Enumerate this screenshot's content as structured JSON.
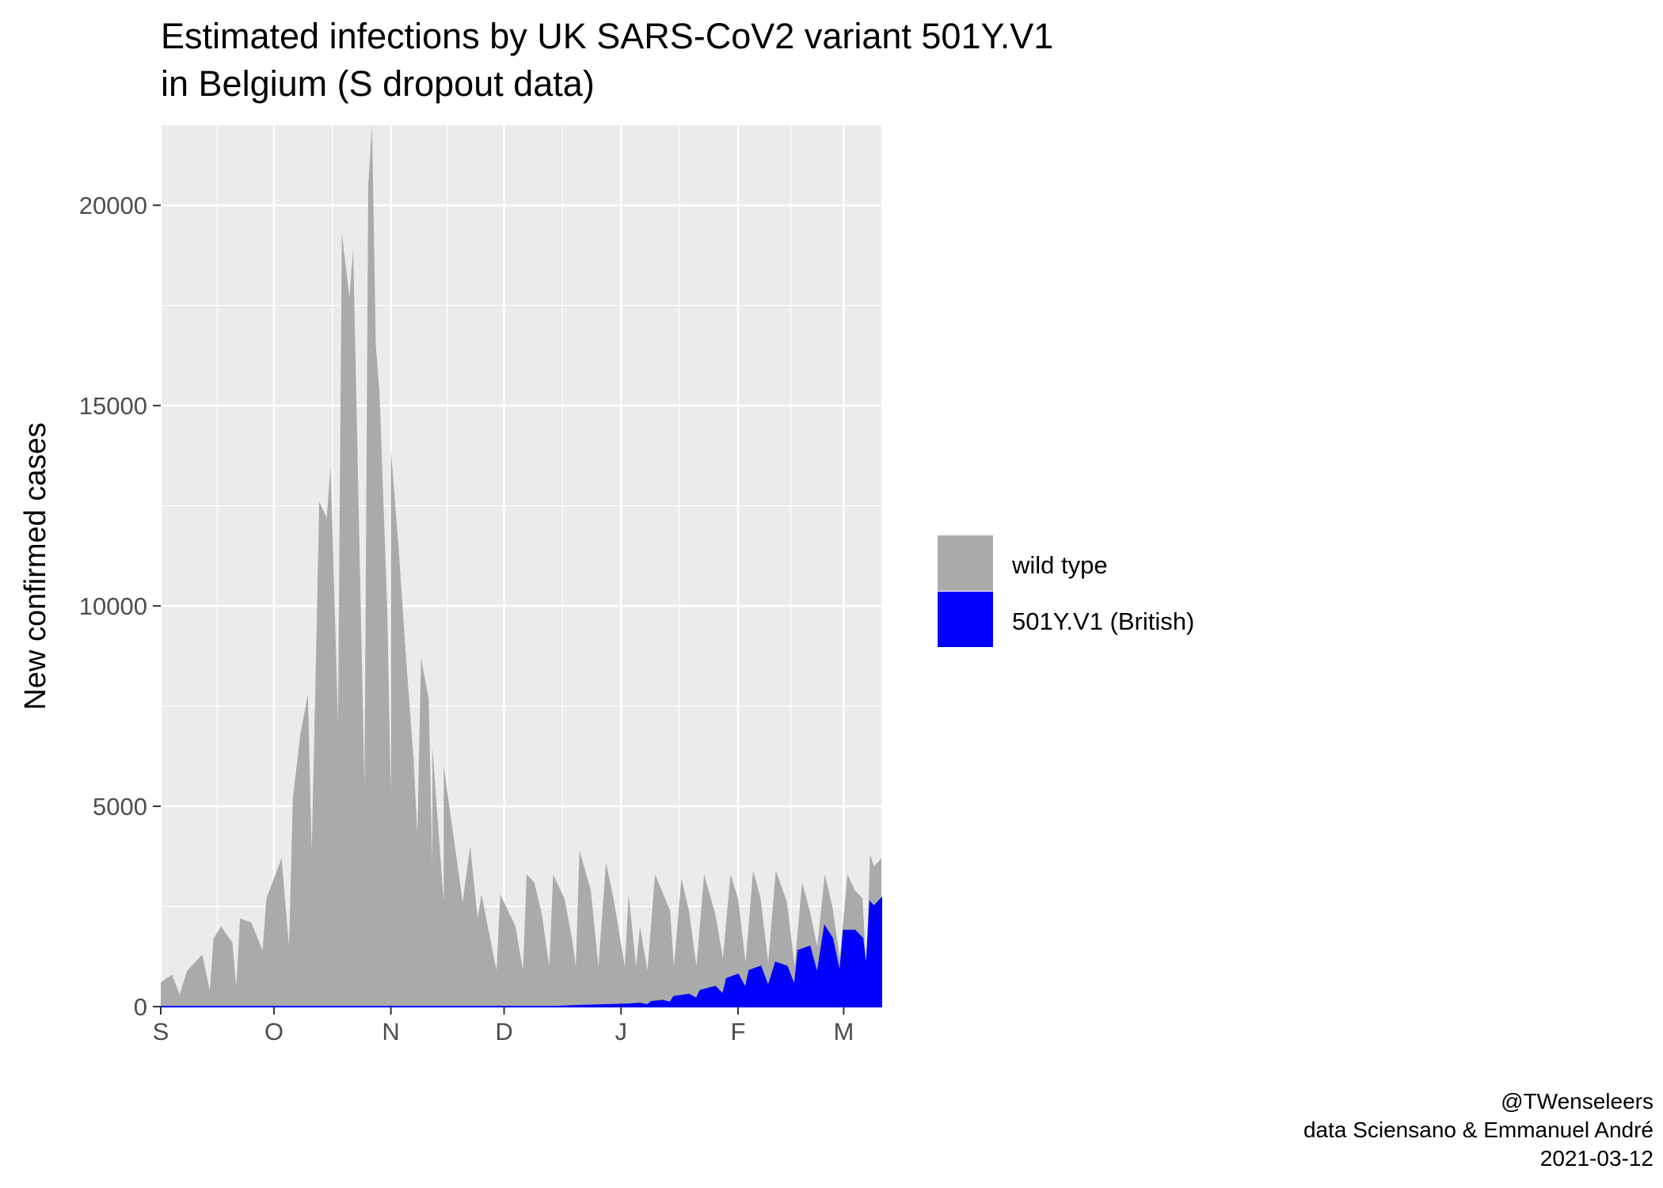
{
  "chart_data": {
    "type": "area",
    "stacked": true,
    "title": [
      "Estimated infections by UK SARS-CoV2 variant 501Y.V1",
      "in Belgium (S dropout data)"
    ],
    "ylabel": "New confirmed cases",
    "xlabel": "",
    "xlim": [
      "2020-09-01",
      "2021-03-11"
    ],
    "ylim": [
      0,
      22000
    ],
    "x_ticks": [
      {
        "date": "2020-09-01",
        "label": "S"
      },
      {
        "date": "2020-10-01",
        "label": "O"
      },
      {
        "date": "2020-11-01",
        "label": "N"
      },
      {
        "date": "2020-12-01",
        "label": "D"
      },
      {
        "date": "2021-01-01",
        "label": "J"
      },
      {
        "date": "2021-02-01",
        "label": "F"
      },
      {
        "date": "2021-03-01",
        "label": "M"
      }
    ],
    "y_ticks": [
      0,
      5000,
      10000,
      15000,
      20000
    ],
    "grid": true,
    "background": "#ebebeb",
    "legend_position": "right",
    "legend": [
      {
        "key": "wild_type",
        "label": "wild type",
        "color": "#aaaaaa"
      },
      {
        "key": "variant",
        "label": "501Y.V1 (British)",
        "color": "#0000ff"
      }
    ],
    "series": [
      {
        "name": "wild type",
        "color": "#aaaaaa",
        "points": [
          [
            "2020-09-01",
            600
          ],
          [
            "2020-09-04",
            800
          ],
          [
            "2020-09-06",
            300
          ],
          [
            "2020-09-08",
            900
          ],
          [
            "2020-09-12",
            1300
          ],
          [
            "2020-09-14",
            400
          ],
          [
            "2020-09-15",
            1700
          ],
          [
            "2020-09-17",
            2000
          ],
          [
            "2020-09-20",
            1600
          ],
          [
            "2020-09-21",
            500
          ],
          [
            "2020-09-22",
            2200
          ],
          [
            "2020-09-25",
            2100
          ],
          [
            "2020-09-28",
            1400
          ],
          [
            "2020-09-29",
            2700
          ],
          [
            "2020-10-03",
            3700
          ],
          [
            "2020-10-05",
            1500
          ],
          [
            "2020-10-06",
            5200
          ],
          [
            "2020-10-08",
            6800
          ],
          [
            "2020-10-10",
            7800
          ],
          [
            "2020-10-11",
            3900
          ],
          [
            "2020-10-12",
            8000
          ],
          [
            "2020-10-13",
            12600
          ],
          [
            "2020-10-15",
            12200
          ],
          [
            "2020-10-16",
            13500
          ],
          [
            "2020-10-18",
            7100
          ],
          [
            "2020-10-19",
            19300
          ],
          [
            "2020-10-21",
            17700
          ],
          [
            "2020-10-22",
            18900
          ],
          [
            "2020-10-25",
            5500
          ],
          [
            "2020-10-26",
            20500
          ],
          [
            "2020-10-27",
            23000
          ],
          [
            "2020-10-28",
            16500
          ],
          [
            "2020-10-29",
            15300
          ],
          [
            "2020-10-31",
            10000
          ],
          [
            "2020-11-01",
            5300
          ],
          [
            "2020-11-01",
            13900
          ],
          [
            "2020-11-03",
            11500
          ],
          [
            "2020-11-05",
            8700
          ],
          [
            "2020-11-07",
            6200
          ],
          [
            "2020-11-08",
            4300
          ],
          [
            "2020-11-09",
            8700
          ],
          [
            "2020-11-11",
            7700
          ],
          [
            "2020-11-12",
            3500
          ],
          [
            "2020-11-12",
            6500
          ],
          [
            "2020-11-15",
            2600
          ],
          [
            "2020-11-15",
            6000
          ],
          [
            "2020-11-19",
            3300
          ],
          [
            "2020-11-20",
            2600
          ],
          [
            "2020-11-22",
            4000
          ],
          [
            "2020-11-24",
            2200
          ],
          [
            "2020-11-25",
            2800
          ],
          [
            "2020-11-29",
            900
          ],
          [
            "2020-11-30",
            2800
          ],
          [
            "2020-12-04",
            2000
          ],
          [
            "2020-12-06",
            900
          ],
          [
            "2020-12-07",
            3300
          ],
          [
            "2020-12-09",
            3100
          ],
          [
            "2020-12-11",
            2300
          ],
          [
            "2020-12-13",
            1000
          ],
          [
            "2020-12-14",
            3300
          ],
          [
            "2020-12-17",
            2700
          ],
          [
            "2020-12-19",
            1700
          ],
          [
            "2020-12-20",
            1000
          ],
          [
            "2020-12-21",
            3900
          ],
          [
            "2020-12-24",
            2900
          ],
          [
            "2020-12-26",
            1000
          ],
          [
            "2020-12-28",
            3600
          ],
          [
            "2020-12-30",
            2700
          ],
          [
            "2021-01-02",
            1000
          ],
          [
            "2021-01-03",
            2800
          ],
          [
            "2021-01-05",
            1000
          ],
          [
            "2021-01-06",
            2000
          ],
          [
            "2021-01-08",
            900
          ],
          [
            "2021-01-10",
            3300
          ],
          [
            "2021-01-14",
            2400
          ],
          [
            "2021-01-15",
            1000
          ],
          [
            "2021-01-17",
            3200
          ],
          [
            "2021-01-19",
            2400
          ],
          [
            "2021-01-21",
            1000
          ],
          [
            "2021-01-23",
            3300
          ],
          [
            "2021-01-26",
            2300
          ],
          [
            "2021-01-28",
            1200
          ],
          [
            "2021-01-30",
            3300
          ],
          [
            "2021-02-01",
            2700
          ],
          [
            "2021-02-03",
            1100
          ],
          [
            "2021-02-05",
            3400
          ],
          [
            "2021-02-07",
            2700
          ],
          [
            "2021-02-09",
            1100
          ],
          [
            "2021-02-11",
            3400
          ],
          [
            "2021-02-14",
            2600
          ],
          [
            "2021-02-16",
            1000
          ],
          [
            "2021-02-18",
            3100
          ],
          [
            "2021-02-20",
            2400
          ],
          [
            "2021-02-22",
            1500
          ],
          [
            "2021-02-24",
            3300
          ],
          [
            "2021-02-26",
            2500
          ],
          [
            "2021-02-28",
            1200
          ],
          [
            "2021-03-02",
            3300
          ],
          [
            "2021-03-04",
            2900
          ],
          [
            "2021-03-06",
            2700
          ],
          [
            "2021-03-07",
            900
          ],
          [
            "2021-03-08",
            3800
          ],
          [
            "2021-03-09",
            3500
          ],
          [
            "2021-03-11",
            3700
          ]
        ]
      },
      {
        "name": "501Y.V1 (British)",
        "color": "#0000ff",
        "points": [
          [
            "2020-09-01",
            0
          ],
          [
            "2020-12-15",
            0
          ],
          [
            "2020-12-20",
            20
          ],
          [
            "2020-12-27",
            40
          ],
          [
            "2021-01-03",
            60
          ],
          [
            "2021-01-06",
            80
          ],
          [
            "2021-01-08",
            40
          ],
          [
            "2021-01-09",
            120
          ],
          [
            "2021-01-12",
            150
          ],
          [
            "2021-01-14",
            100
          ],
          [
            "2021-01-15",
            250
          ],
          [
            "2021-01-19",
            300
          ],
          [
            "2021-01-21",
            200
          ],
          [
            "2021-01-22",
            400
          ],
          [
            "2021-01-26",
            500
          ],
          [
            "2021-01-28",
            300
          ],
          [
            "2021-01-29",
            700
          ],
          [
            "2021-02-01",
            800
          ],
          [
            "2021-02-03",
            450
          ],
          [
            "2021-02-04",
            900
          ],
          [
            "2021-02-07",
            1000
          ],
          [
            "2021-02-09",
            500
          ],
          [
            "2021-02-11",
            1100
          ],
          [
            "2021-02-14",
            1000
          ],
          [
            "2021-02-16",
            500
          ],
          [
            "2021-02-17",
            1400
          ],
          [
            "2021-02-20",
            1500
          ],
          [
            "2021-02-22",
            800
          ],
          [
            "2021-02-24",
            2000
          ],
          [
            "2021-02-26",
            1700
          ],
          [
            "2021-02-28",
            800
          ],
          [
            "2021-03-01",
            1900
          ],
          [
            "2021-03-04",
            1900
          ],
          [
            "2021-03-06",
            1700
          ],
          [
            "2021-03-07",
            900
          ],
          [
            "2021-03-08",
            2600
          ],
          [
            "2021-03-09",
            2500
          ],
          [
            "2021-03-11",
            2700
          ]
        ]
      }
    ]
  },
  "caption": {
    "handle": "@TWenseleers",
    "source": "data Sciensano & Emmanuel André",
    "date": "2021-03-12"
  }
}
